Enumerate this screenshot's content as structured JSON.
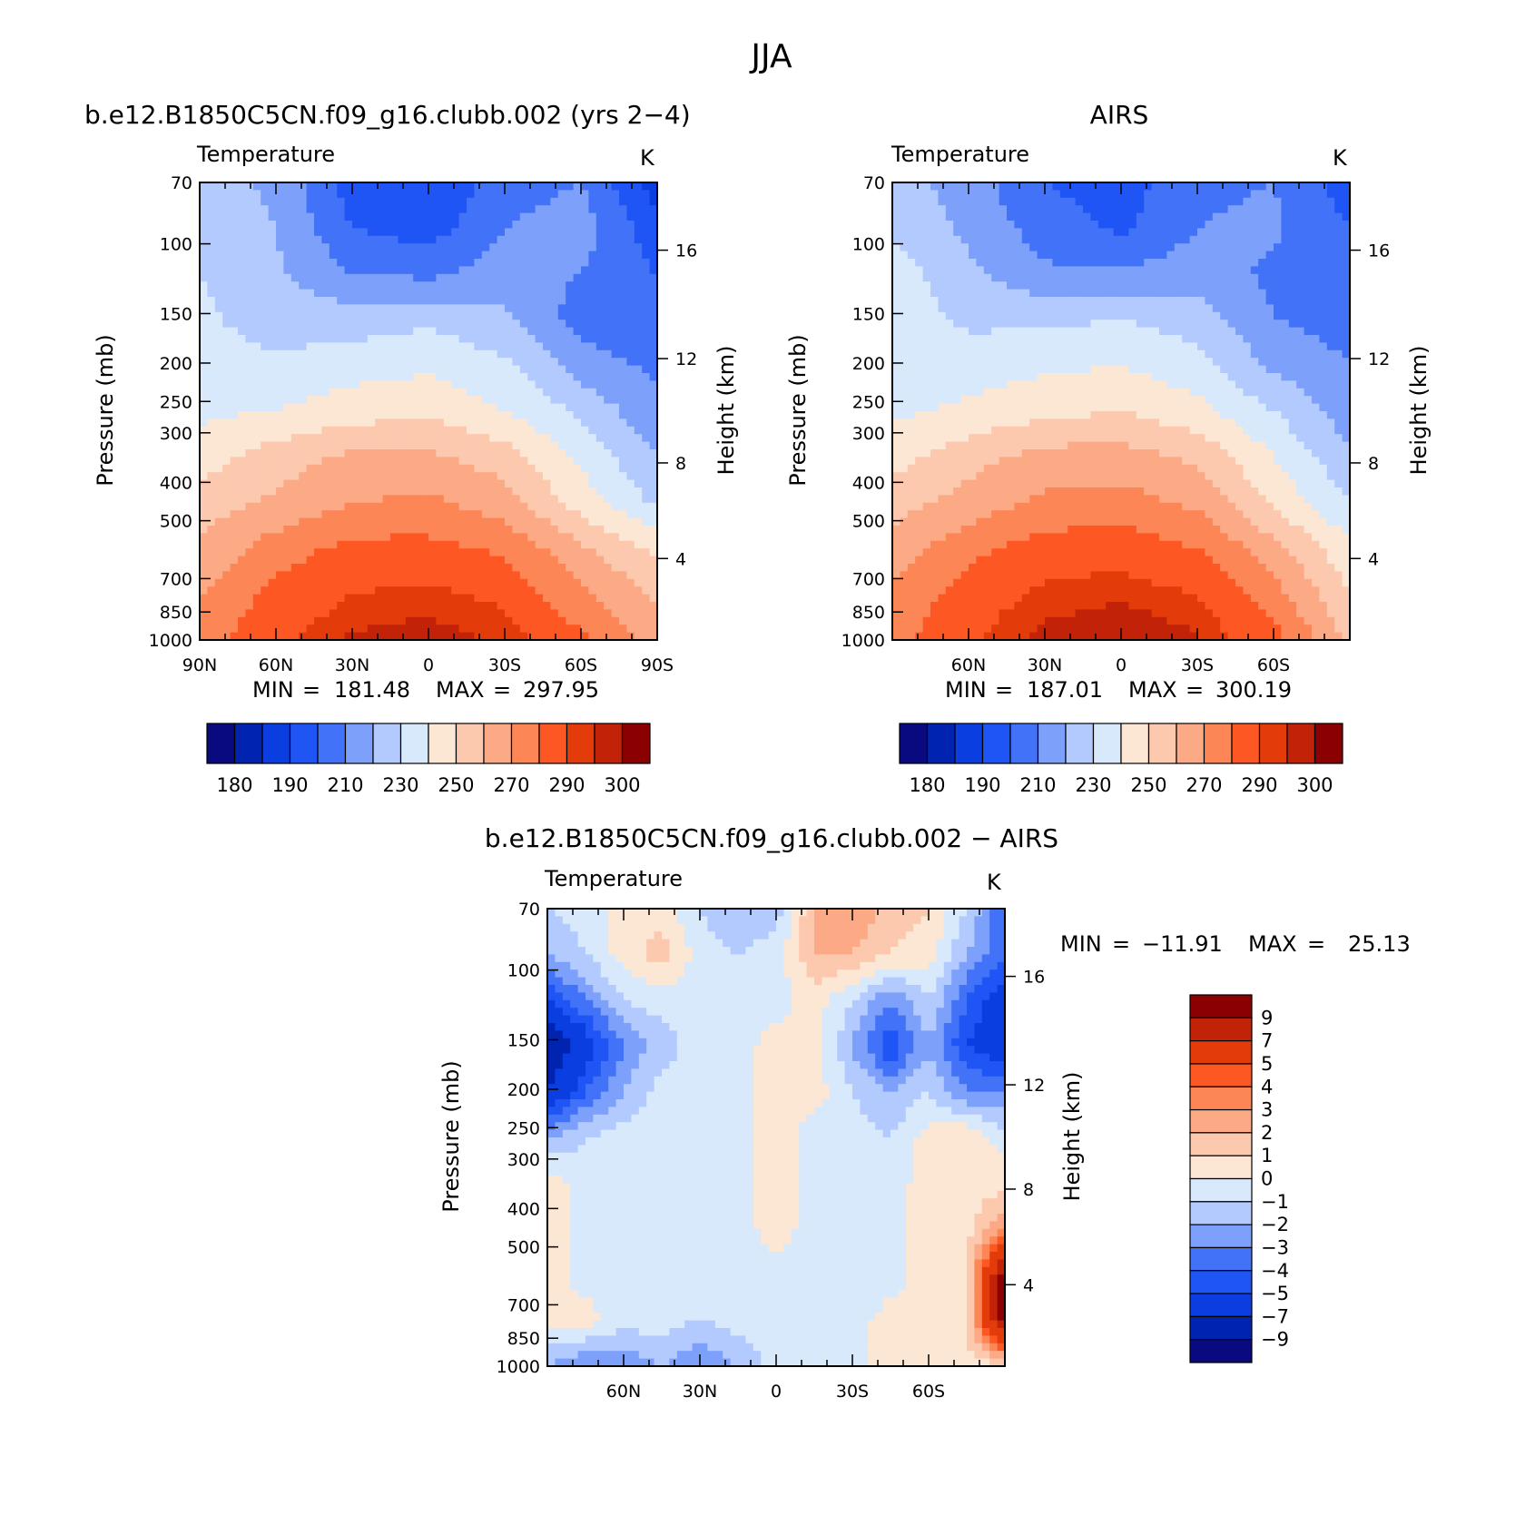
{
  "title": "JJA",
  "colors": {
    "abs": [
      "#0a0a80",
      "#0024b0",
      "#0a3ee0",
      "#1f55f5",
      "#4272f7",
      "#7da0fa",
      "#b3caff",
      "#d7e9fb",
      "#fce6d4",
      "#fcc9af",
      "#fcaa86",
      "#fd8656",
      "#fd5823",
      "#e33b0a",
      "#c22308",
      "#8b0000"
    ],
    "diff": [
      "#0a0a80",
      "#0024b0",
      "#0a3ee0",
      "#1f55f5",
      "#4272f7",
      "#7da0fa",
      "#b3caff",
      "#d7e9fb",
      "#fce6d4",
      "#fcc9af",
      "#fcaa86",
      "#fd8656",
      "#fd5823",
      "#e33b0a",
      "#c22308",
      "#8b0000"
    ]
  },
  "chart_data": [
    {
      "type": "heatmap",
      "title": "b.e12.B1850C5CN.f09_g16.clubb.002 (yrs 2−4)",
      "variable": "Temperature",
      "units": "K",
      "ylabel": "Pressure (mb)",
      "y2label": "Height (km)",
      "x_ticks": [
        "90N",
        "60N",
        "30N",
        "0",
        "30S",
        "60S",
        "90S"
      ],
      "y_ticks": [
        "70",
        "100",
        "150",
        "200",
        "250",
        "300",
        "400",
        "500",
        "700",
        "850",
        "1000"
      ],
      "y2_ticks": [
        "16",
        "12",
        "8",
        "4"
      ],
      "stats": {
        "min_label": "MIN",
        "min": "181.48",
        "max_label": "MAX",
        "max": "297.95"
      },
      "colorbar_labels": [
        "180",
        "190",
        "210",
        "230",
        "250",
        "270",
        "290",
        "300"
      ],
      "data": {
        "y": [
          70,
          100,
          150,
          200,
          250,
          300,
          400,
          500,
          700,
          850,
          1000
        ],
        "x": [
          90,
          60,
          30,
          0,
          -30,
          -60,
          -90
        ],
        "values": [
          [
            225,
            218,
            195,
            190,
            205,
            210,
            185
          ],
          [
            228,
            220,
            200,
            195,
            210,
            215,
            193
          ],
          [
            230,
            222,
            210,
            208,
            215,
            210,
            200
          ],
          [
            232,
            225,
            225,
            228,
            222,
            205,
            202
          ],
          [
            235,
            232,
            236,
            238,
            232,
            215,
            208
          ],
          [
            238,
            240,
            245,
            248,
            240,
            228,
            212
          ],
          [
            245,
            255,
            262,
            262,
            255,
            238,
            220
          ],
          [
            255,
            262,
            270,
            272,
            265,
            245,
            228
          ],
          [
            262,
            275,
            283,
            283,
            278,
            262,
            248
          ],
          [
            270,
            283,
            290,
            292,
            288,
            272,
            258
          ],
          [
            275,
            288,
            296,
            298,
            294,
            282,
            265
          ]
        ]
      }
    },
    {
      "type": "heatmap",
      "title": "AIRS",
      "variable": "Temperature",
      "units": "K",
      "ylabel": "Pressure (mb)",
      "y2label": "Height (km)",
      "x_ticks": [
        "60N",
        "30N",
        "0",
        "30S",
        "60S"
      ],
      "y_ticks": [
        "70",
        "100",
        "150",
        "200",
        "250",
        "300",
        "400",
        "500",
        "700",
        "850",
        "1000"
      ],
      "y2_ticks": [
        "16",
        "12",
        "8",
        "4"
      ],
      "stats": {
        "min_label": "MIN",
        "min": "187.01",
        "max_label": "MAX",
        "max": "300.19"
      },
      "colorbar_labels": [
        "180",
        "190",
        "210",
        "230",
        "250",
        "270",
        "290",
        "300"
      ],
      "data": {
        "y": [
          70,
          100,
          150,
          200,
          250,
          300,
          400,
          500,
          700,
          850,
          1000
        ],
        "x": [
          90,
          60,
          30,
          0,
          -30,
          -60,
          -90
        ],
        "values": [
          [
            225,
            215,
            200,
            195,
            208,
            210,
            195
          ],
          [
            228,
            218,
            205,
            198,
            210,
            212,
            200
          ],
          [
            236,
            222,
            212,
            212,
            215,
            208,
            205
          ],
          [
            236,
            228,
            228,
            230,
            225,
            210,
            206
          ],
          [
            236,
            235,
            238,
            240,
            234,
            218,
            210
          ],
          [
            238,
            242,
            247,
            250,
            243,
            230,
            214
          ],
          [
            246,
            256,
            264,
            264,
            258,
            240,
            222
          ],
          [
            256,
            264,
            272,
            274,
            268,
            248,
            230
          ],
          [
            264,
            277,
            285,
            286,
            280,
            264,
            242
          ],
          [
            272,
            285,
            292,
            294,
            290,
            274,
            250
          ],
          [
            276,
            289,
            297,
            300,
            296,
            284,
            258
          ]
        ]
      }
    },
    {
      "type": "heatmap",
      "title": "b.e12.B1850C5CN.f09_g16.clubb.002 − AIRS",
      "variable": "Temperature",
      "units": "K",
      "ylabel": "Pressure (mb)",
      "y2label": "Height (km)",
      "x_ticks": [
        "60N",
        "30N",
        "0",
        "30S",
        "60S"
      ],
      "y_ticks": [
        "70",
        "100",
        "150",
        "200",
        "250",
        "300",
        "400",
        "500",
        "700",
        "850",
        "1000"
      ],
      "y2_ticks": [
        "16",
        "12",
        "8",
        "4"
      ],
      "stats": {
        "min_label": "MIN",
        "min": "−11.91",
        "max_label": "MAX",
        "max": "25.13"
      },
      "colorbar_labels": [
        "9",
        "7",
        "5",
        "4",
        "3",
        "2",
        "1",
        "0",
        "−1",
        "−2",
        "−3",
        "−4",
        "−5",
        "−7",
        "−9"
      ],
      "data": {
        "y": [
          70,
          100,
          150,
          200,
          250,
          300,
          400,
          500,
          700,
          850,
          1000
        ],
        "x": [
          90,
          75,
          60,
          45,
          30,
          15,
          0,
          -15,
          -30,
          -45,
          -60,
          -75,
          -90
        ],
        "values": [
          [
            -1,
            -0.5,
            0.5,
            0.5,
            -1,
            -2,
            -1.5,
            2,
            3,
            1.5,
            1,
            -1,
            -4
          ],
          [
            -2,
            -1,
            0.5,
            1.5,
            -0.5,
            -1,
            -0.5,
            2,
            2,
            1,
            0.5,
            -2,
            -4
          ],
          [
            -5,
            -3,
            -1,
            -0.5,
            -0.5,
            -0.5,
            -0.5,
            0.5,
            -1,
            -3,
            -1,
            -4,
            -6
          ],
          [
            -9,
            -6,
            -3,
            -1.5,
            -0.5,
            -0.5,
            0.5,
            0.5,
            -2,
            -5,
            -2,
            -5,
            -6
          ],
          [
            -7,
            -4,
            -2,
            -0.5,
            -0.5,
            -0.5,
            0.5,
            0.5,
            -1,
            -2,
            -1,
            -3,
            -3
          ],
          [
            -2,
            -1,
            -0.5,
            -0.5,
            -0.5,
            -0.5,
            0.5,
            -0.5,
            -0.5,
            -1,
            0.5,
            1,
            -0.5
          ],
          [
            0.5,
            -0.5,
            -0.5,
            -1,
            -0.5,
            -0.5,
            0.5,
            -0.5,
            -1,
            -0.5,
            0.5,
            0.5,
            0.5
          ],
          [
            0.5,
            -0.5,
            -0.5,
            -1,
            -0.5,
            -0.5,
            0.5,
            -0.5,
            -1,
            -0.5,
            0.5,
            0.5,
            3
          ],
          [
            0.5,
            -0.5,
            -1,
            -0.5,
            -1,
            -0.5,
            -0.5,
            -0.5,
            -1,
            -0.5,
            0.5,
            1,
            10
          ],
          [
            0.5,
            0.5,
            -0.5,
            -0.5,
            -1,
            -0.5,
            -0.5,
            -0.5,
            -0.5,
            0.5,
            0.5,
            1,
            10
          ],
          [
            -2,
            -3,
            -3,
            -2,
            -3,
            -2,
            -0.5,
            -0.5,
            -0.5,
            0.5,
            0.5,
            0.5,
            0.5
          ]
        ]
      }
    }
  ]
}
